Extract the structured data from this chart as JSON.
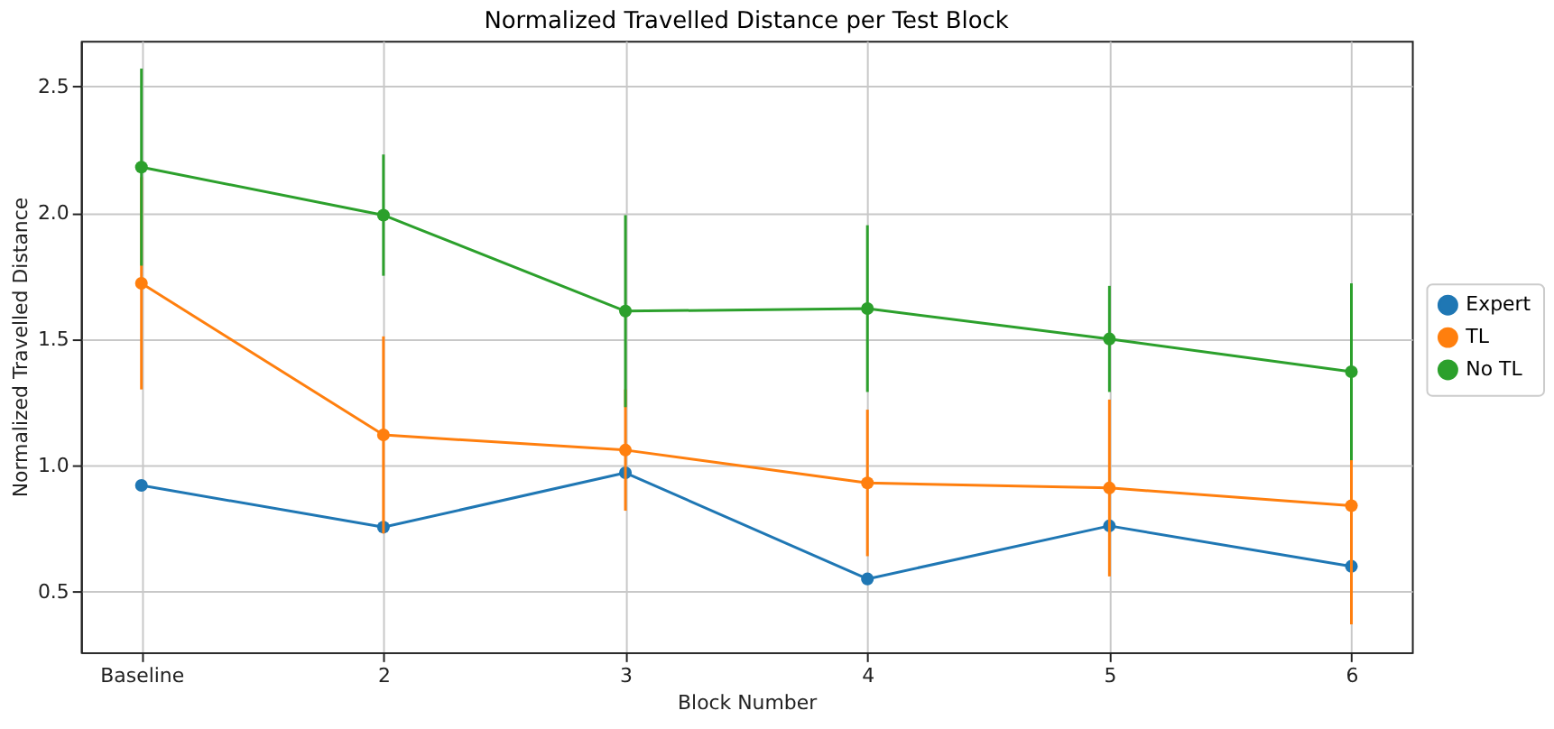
{
  "chart_data": {
    "type": "line",
    "title": "Normalized Travelled Distance per Test Block",
    "xlabel": "Block Number",
    "ylabel": "Normalized Travelled Distance",
    "categories": [
      "Baseline",
      "2",
      "3",
      "4",
      "5",
      "6"
    ],
    "series": [
      {
        "name": "Expert",
        "color": "#1f77b4",
        "values": [
          0.92,
          0.755,
          0.97,
          0.55,
          0.76,
          0.6
        ]
      },
      {
        "name": "TL",
        "color": "#ff7f0e",
        "values": [
          1.72,
          1.12,
          1.06,
          0.93,
          0.91,
          0.84
        ],
        "errors": [
          0.42,
          0.39,
          0.24,
          0.29,
          0.35,
          0.47
        ]
      },
      {
        "name": "No TL",
        "color": "#2ca02c",
        "values": [
          2.18,
          1.99,
          1.61,
          1.62,
          1.5,
          1.37
        ],
        "errors": [
          0.39,
          0.24,
          0.38,
          0.33,
          0.21,
          0.35
        ]
      }
    ],
    "ylim": [
      0.26,
      2.68
    ],
    "yticks": [
      0.5,
      {
        "value": 1,
        "label": "1.0"
      },
      1.5,
      {
        "value": 2,
        "label": "2.0"
      },
      2.5
    ],
    "grid": true,
    "legend": "right",
    "marker": "circle",
    "line_style": "solid"
  }
}
